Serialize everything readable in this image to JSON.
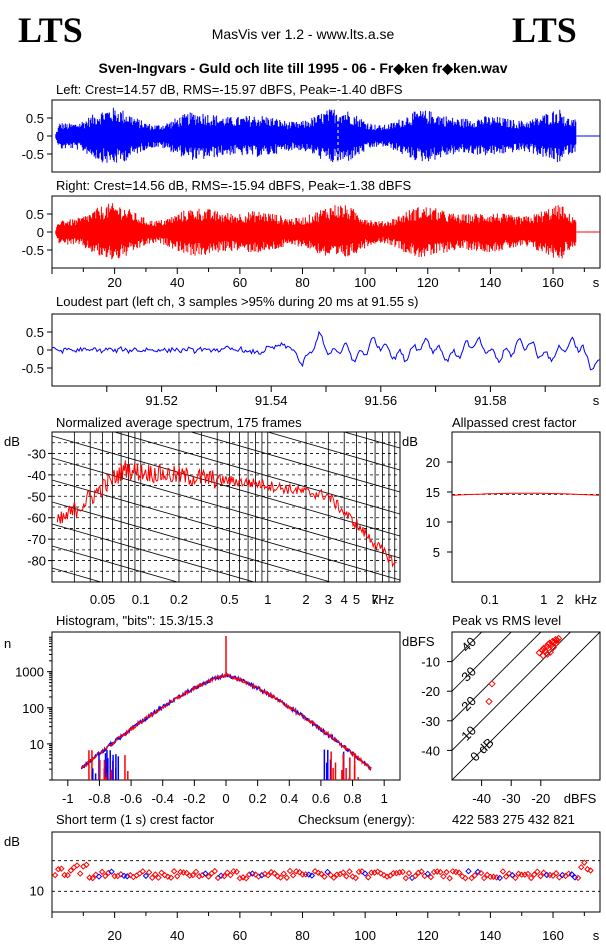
{
  "header": {
    "logo_left": "LTS",
    "logo_right": "LTS",
    "app_title": "MasVis ver 1.2 - www.lts.a.se",
    "track_title": "Sven-Ingvars - Guld och lite till 1995 - 06 - Fr◆ken fr◆ken.wav"
  },
  "colors": {
    "left": "#0000ff",
    "right": "#ff0000"
  },
  "chart_data": [
    {
      "type": "area",
      "title": "Left: Crest=14.57 dB, RMS=-15.97 dBFS, Peak=-1.40 dBFS",
      "channel": "left",
      "ylim": [
        -1,
        1
      ],
      "xlim": [
        0,
        175
      ],
      "yticks": [
        "0.5",
        "0",
        "-0.5"
      ],
      "marker_x": 91.55
    },
    {
      "type": "area",
      "title": "Right: Crest=14.56 dB, RMS=-15.94 dBFS, Peak=-1.38 dBFS",
      "channel": "right",
      "ylim": [
        -1,
        1
      ],
      "xlim": [
        0,
        175
      ],
      "yticks": [
        "0.5",
        "0",
        "-0.5"
      ],
      "xticks": [
        "20",
        "40",
        "60",
        "80",
        "100",
        "120",
        "140",
        "160"
      ],
      "xunit": "s"
    },
    {
      "type": "line",
      "title": "Loudest part (left  ch, 3 samples >95% during 20 ms at 91.55 s)",
      "xlim": [
        91.5,
        91.6
      ],
      "ylim": [
        -1,
        1
      ],
      "yticks": [
        "0.5",
        "0",
        "-0.5"
      ],
      "xticks": [
        "91.52",
        "91.54",
        "91.56",
        "91.58"
      ],
      "xunit": "s"
    },
    {
      "type": "line",
      "title": "Normalized average spectrum, 175 frames",
      "yunit": "dB",
      "yticks": [
        "-30",
        "-40",
        "-50",
        "-60",
        "-70",
        "-80"
      ],
      "xticks": [
        "0.05",
        "0.1",
        "0.2",
        "0.5",
        "1",
        "2",
        "3",
        "4",
        "5",
        "7"
      ],
      "xunit": "kHz",
      "log_x": true
    },
    {
      "type": "line",
      "title": "Allpassed crest factor",
      "yunit": "dB",
      "yticks": [
        "20",
        "15",
        "10",
        "5"
      ],
      "xticks": [
        "0.1",
        "1",
        "2"
      ],
      "xunit": "kHz",
      "ylim": [
        0,
        25
      ],
      "value": 14.6
    },
    {
      "type": "bar",
      "title": "Histogram, \"bits\": 15.3/15.3",
      "yunit": "n",
      "log_y": true,
      "yticks": [
        "1000",
        "100",
        "10"
      ],
      "xticks": [
        "-1",
        "-0.8",
        "-0.6",
        "-0.4",
        "-0.2",
        "0",
        "0.2",
        "0.4",
        "0.6",
        "0.8",
        "1"
      ],
      "xlim": [
        -1.1,
        1.1
      ]
    },
    {
      "type": "scatter",
      "title": "Peak vs RMS level",
      "yunit": "dBFS",
      "xunit": "dBFS",
      "yticks": [
        "-10",
        "-20",
        "-30",
        "-40"
      ],
      "xticks": [
        "-40",
        "-30",
        "-20"
      ],
      "diagonal_labels": [
        "40",
        "30",
        "20",
        "10",
        "0 dB"
      ],
      "xlim": [
        -50,
        0
      ],
      "ylim": [
        -50,
        0
      ],
      "points": [
        [
          -37.5,
          -23.5
        ],
        [
          -36.5,
          -17.5
        ],
        [
          -20.5,
          -7
        ],
        [
          -19.5,
          -6.2
        ],
        [
          -19,
          -5.5
        ],
        [
          -18.5,
          -6.5
        ],
        [
          -18,
          -5
        ],
        [
          -17.5,
          -4.2
        ],
        [
          -17,
          -3.8
        ],
        [
          -16.5,
          -4.5
        ],
        [
          -16,
          -3.2
        ],
        [
          -15.5,
          -3.5
        ],
        [
          -15,
          -2.6
        ],
        [
          -14.5,
          -2.8
        ],
        [
          -14,
          -2.2
        ],
        [
          -17.8,
          -7.5
        ],
        [
          -16.8,
          -6.8
        ],
        [
          -15.8,
          -5.2
        ],
        [
          -14.8,
          -3.8
        ],
        [
          -19.2,
          -8
        ]
      ]
    },
    {
      "type": "scatter",
      "title": "Short term (1 s) crest factor",
      "checksum_label": "Checksum (energy):",
      "checksum_value": "422 583 275 432 821",
      "yunit": "dB",
      "yticks": [
        "10"
      ],
      "xticks": [
        "20",
        "40",
        "60",
        "80",
        "100",
        "120",
        "140",
        "160"
      ],
      "xunit": "s",
      "xlim": [
        0,
        175
      ],
      "ylim": [
        5,
        20
      ]
    }
  ]
}
